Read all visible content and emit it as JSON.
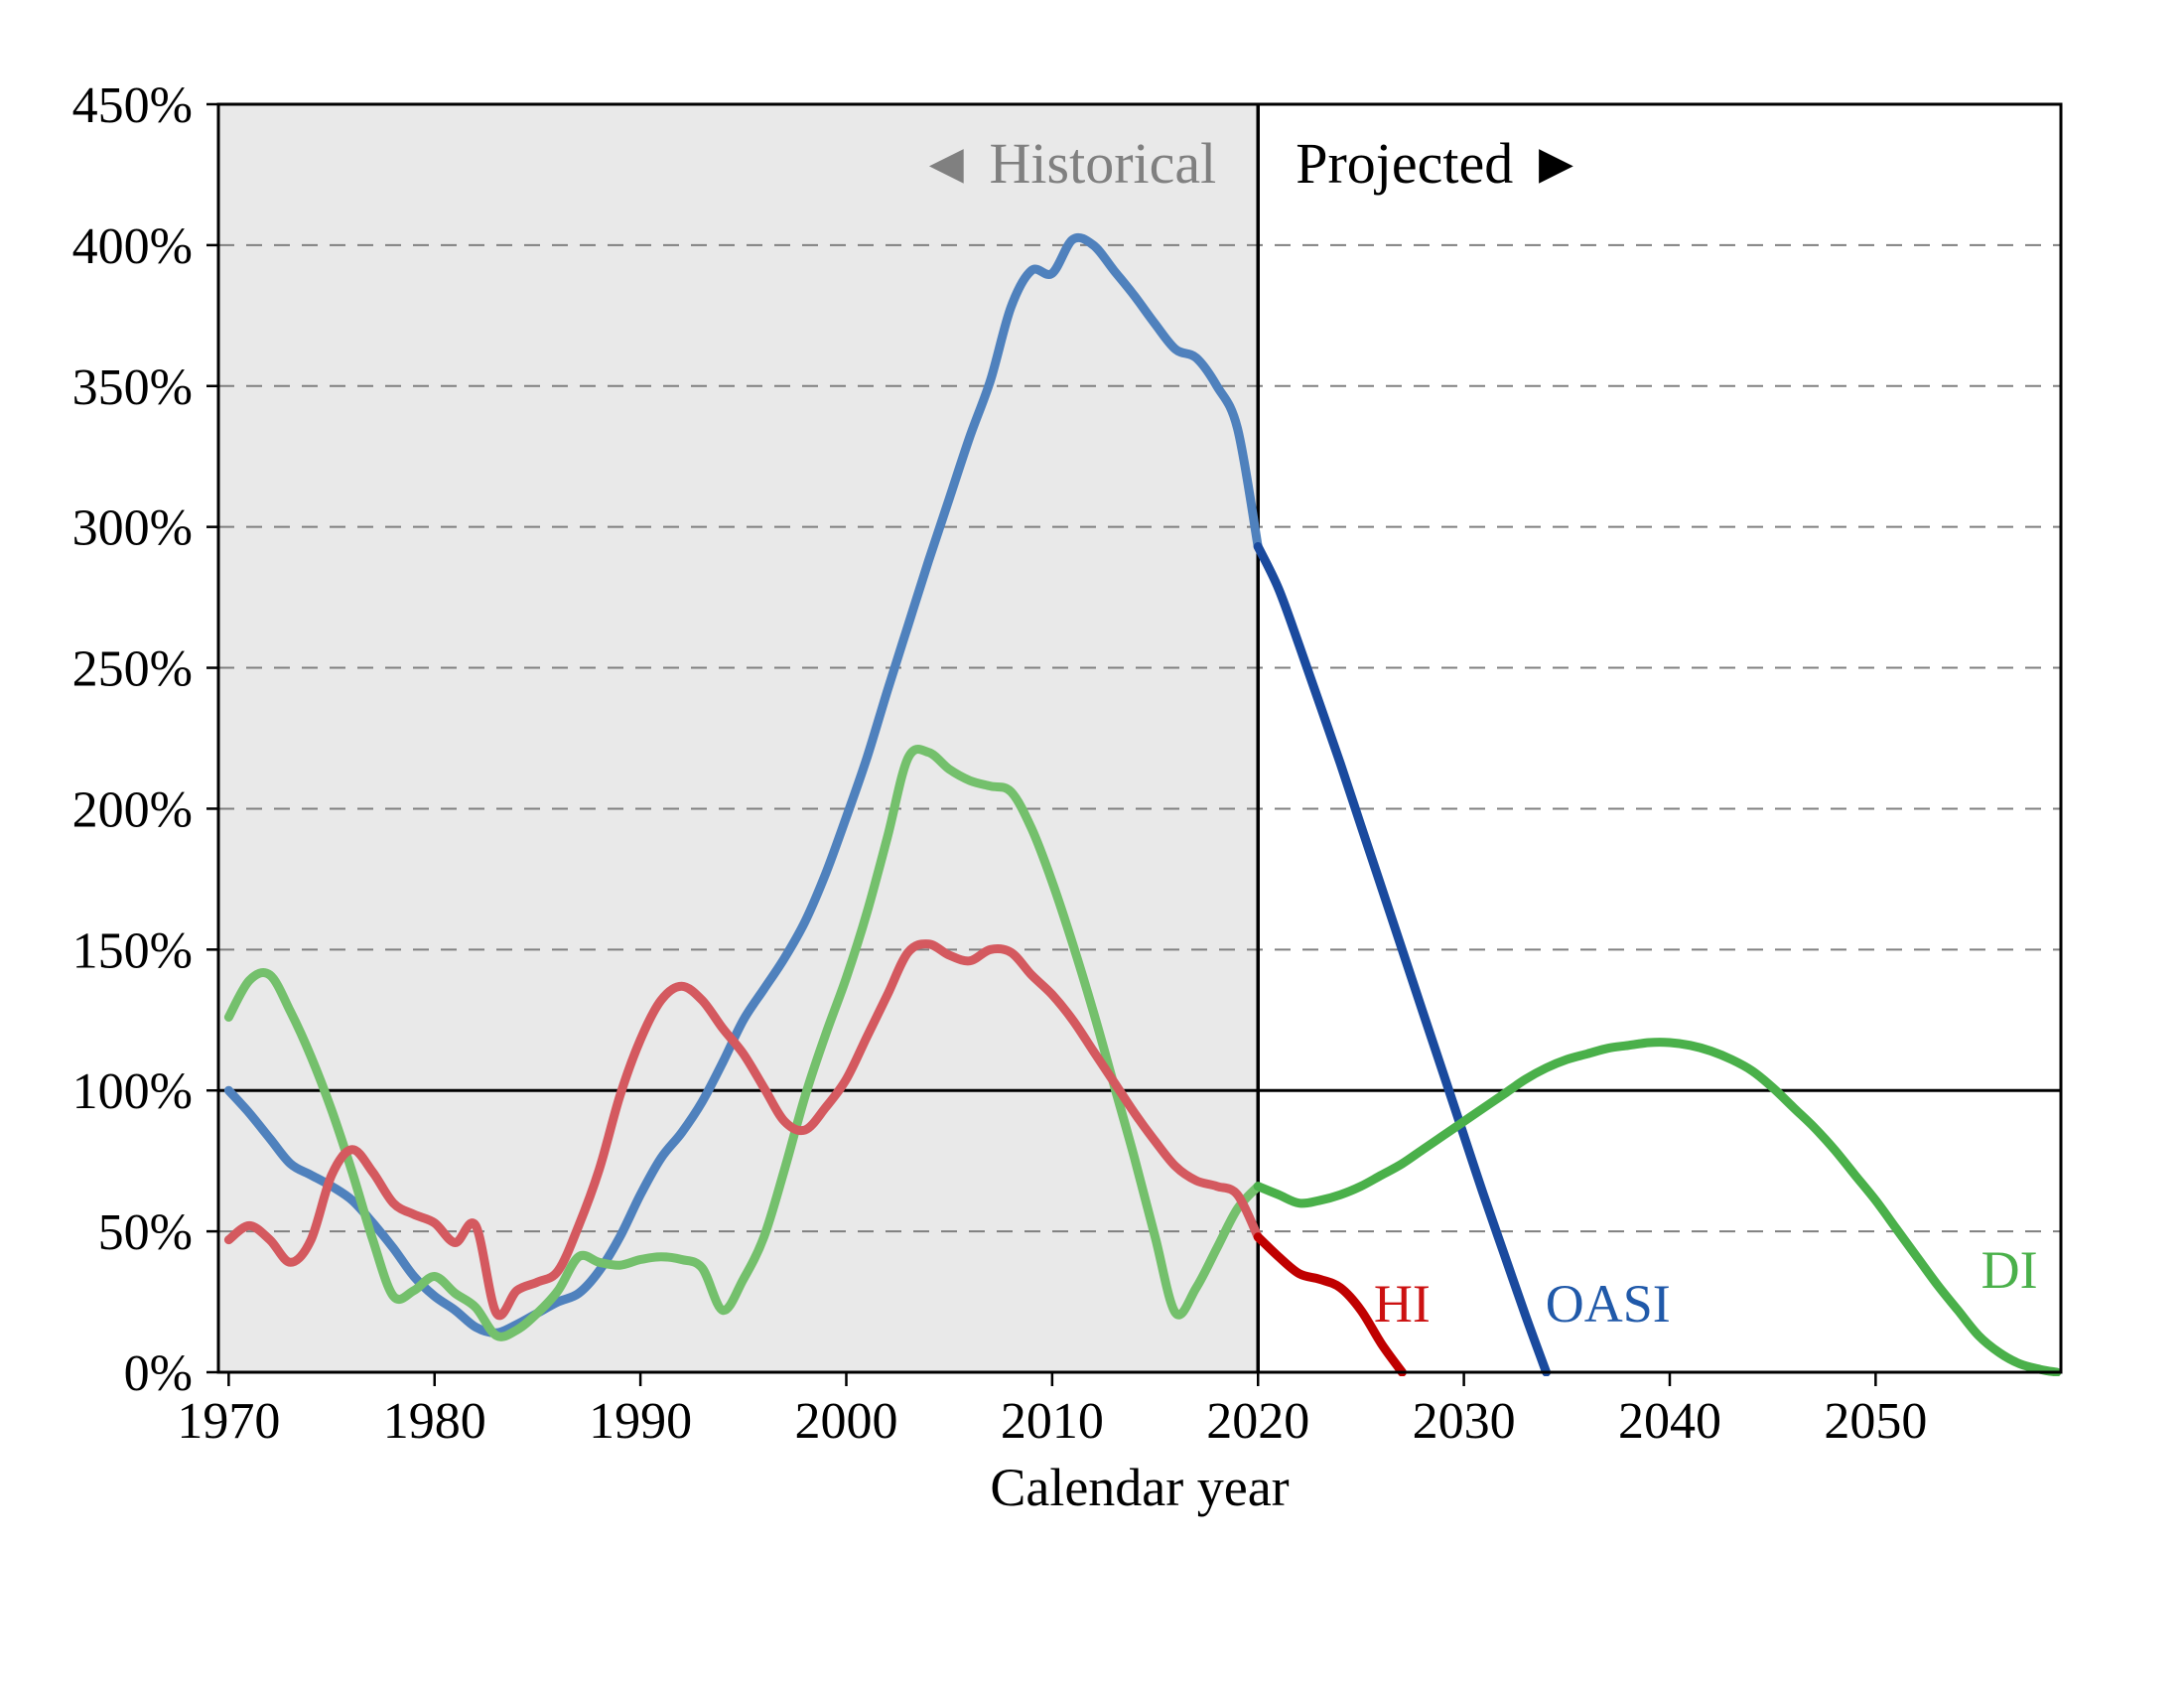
{
  "colors": {
    "historical_region": "#e9e9e9",
    "gridline": "#808080",
    "frame": "#000000",
    "reference_line": "#000000",
    "divider": "#000000",
    "historical_text": "#808080",
    "projected_text": "#000000",
    "tick_text": "#000000"
  },
  "chart_data": {
    "type": "line",
    "title": "",
    "xlabel": "Calendar year",
    "ylabel": "",
    "xlim": [
      1969.5,
      2059
    ],
    "ylim": [
      0,
      450
    ],
    "grid": "dashed horizontal gridlines every 50%, solid line at 100%",
    "legend_position": "inline labels at line ends",
    "reference_line": 100,
    "divider_year": 2020,
    "region_labels": {
      "historical": "◄ Historical",
      "projected": "Projected ►"
    },
    "x_ticks": [
      {
        "value": 1970,
        "label": "1970"
      },
      {
        "value": 1980,
        "label": "1980"
      },
      {
        "value": 1990,
        "label": "1990"
      },
      {
        "value": 2000,
        "label": "2000"
      },
      {
        "value": 2010,
        "label": "2010"
      },
      {
        "value": 2020,
        "label": "2020"
      },
      {
        "value": 2030,
        "label": "2030"
      },
      {
        "value": 2040,
        "label": "2040"
      },
      {
        "value": 2050,
        "label": "2050"
      }
    ],
    "y_ticks": [
      {
        "value": 0,
        "label": "0%"
      },
      {
        "value": 50,
        "label": "50%"
      },
      {
        "value": 100,
        "label": "100%"
      },
      {
        "value": 150,
        "label": "150%"
      },
      {
        "value": 200,
        "label": "200%"
      },
      {
        "value": 250,
        "label": "250%"
      },
      {
        "value": 300,
        "label": "300%"
      },
      {
        "value": 350,
        "label": "350%"
      },
      {
        "value": 400,
        "label": "400%"
      },
      {
        "value": 450,
        "label": "450%"
      }
    ],
    "series": [
      {
        "name": "OASI",
        "color_historical": "#4f81bd",
        "color_projected": "#1a4a9e",
        "label_color": "#2059a9",
        "label_pos": {
          "year": 2037,
          "pct": 18
        },
        "points_historical": [
          [
            1970,
            100
          ],
          [
            1971,
            92
          ],
          [
            1972,
            83
          ],
          [
            1973,
            74
          ],
          [
            1974,
            70
          ],
          [
            1975,
            66
          ],
          [
            1976,
            61
          ],
          [
            1977,
            53
          ],
          [
            1978,
            44
          ],
          [
            1979,
            34
          ],
          [
            1980,
            27
          ],
          [
            1981,
            22
          ],
          [
            1982,
            16
          ],
          [
            1983,
            14
          ],
          [
            1984,
            17
          ],
          [
            1985,
            21
          ],
          [
            1986,
            25
          ],
          [
            1987,
            28
          ],
          [
            1988,
            36
          ],
          [
            1989,
            48
          ],
          [
            1990,
            63
          ],
          [
            1991,
            76
          ],
          [
            1992,
            85
          ],
          [
            1993,
            96
          ],
          [
            1994,
            110
          ],
          [
            1995,
            125
          ],
          [
            1996,
            136
          ],
          [
            1997,
            147
          ],
          [
            1998,
            160
          ],
          [
            1999,
            177
          ],
          [
            2000,
            197
          ],
          [
            2001,
            218
          ],
          [
            2002,
            242
          ],
          [
            2003,
            265
          ],
          [
            2004,
            288
          ],
          [
            2005,
            310
          ],
          [
            2006,
            332
          ],
          [
            2007,
            352
          ],
          [
            2008,
            378
          ],
          [
            2009,
            391
          ],
          [
            2010,
            390
          ],
          [
            2011,
            402
          ],
          [
            2012,
            400
          ],
          [
            2013,
            391
          ],
          [
            2014,
            382
          ],
          [
            2015,
            372
          ],
          [
            2016,
            363
          ],
          [
            2017,
            360
          ],
          [
            2018,
            350
          ],
          [
            2019,
            335
          ],
          [
            2020,
            293
          ]
        ],
        "points_projected": [
          [
            2020,
            293
          ],
          [
            2021,
            278
          ],
          [
            2022,
            258
          ],
          [
            2023,
            237
          ],
          [
            2024,
            216
          ],
          [
            2025,
            194
          ],
          [
            2026,
            172
          ],
          [
            2027,
            150
          ],
          [
            2028,
            128
          ],
          [
            2029,
            106
          ],
          [
            2030,
            84
          ],
          [
            2031,
            62
          ],
          [
            2032,
            41
          ],
          [
            2033,
            20
          ],
          [
            2034,
            0
          ]
        ]
      },
      {
        "name": "DI",
        "color_historical": "#74c06c",
        "color_projected": "#4ab04a",
        "label_color": "#4ab04a",
        "label_pos": {
          "year": 2056.5,
          "pct": 30
        },
        "points_historical": [
          [
            1970,
            126
          ],
          [
            1971,
            139
          ],
          [
            1972,
            141
          ],
          [
            1973,
            128
          ],
          [
            1974,
            112
          ],
          [
            1975,
            93
          ],
          [
            1976,
            71
          ],
          [
            1977,
            47
          ],
          [
            1978,
            27
          ],
          [
            1979,
            29
          ],
          [
            1980,
            34
          ],
          [
            1981,
            28
          ],
          [
            1982,
            23
          ],
          [
            1983,
            13
          ],
          [
            1984,
            15
          ],
          [
            1985,
            21
          ],
          [
            1986,
            29
          ],
          [
            1987,
            41
          ],
          [
            1988,
            39
          ],
          [
            1989,
            38
          ],
          [
            1990,
            40
          ],
          [
            1991,
            41
          ],
          [
            1992,
            40
          ],
          [
            1993,
            37
          ],
          [
            1994,
            22
          ],
          [
            1995,
            33
          ],
          [
            1996,
            48
          ],
          [
            1997,
            72
          ],
          [
            1998,
            98
          ],
          [
            1999,
            120
          ],
          [
            2000,
            140
          ],
          [
            2001,
            163
          ],
          [
            2002,
            190
          ],
          [
            2003,
            218
          ],
          [
            2004,
            220
          ],
          [
            2005,
            214
          ],
          [
            2006,
            210
          ],
          [
            2007,
            208
          ],
          [
            2008,
            206
          ],
          [
            2009,
            193
          ],
          [
            2010,
            174
          ],
          [
            2011,
            152
          ],
          [
            2012,
            128
          ],
          [
            2013,
            102
          ],
          [
            2014,
            76
          ],
          [
            2015,
            48
          ],
          [
            2016,
            21
          ],
          [
            2017,
            30
          ],
          [
            2018,
            44
          ],
          [
            2019,
            58
          ],
          [
            2020,
            66
          ]
        ],
        "points_projected": [
          [
            2020,
            66
          ],
          [
            2021,
            63
          ],
          [
            2022,
            60
          ],
          [
            2023,
            61
          ],
          [
            2024,
            63
          ],
          [
            2025,
            66
          ],
          [
            2026,
            70
          ],
          [
            2027,
            74
          ],
          [
            2028,
            79
          ],
          [
            2029,
            84
          ],
          [
            2030,
            89
          ],
          [
            2031,
            94
          ],
          [
            2032,
            99
          ],
          [
            2033,
            104
          ],
          [
            2034,
            108
          ],
          [
            2035,
            111
          ],
          [
            2036,
            113
          ],
          [
            2037,
            115
          ],
          [
            2038,
            116
          ],
          [
            2039,
            117
          ],
          [
            2040,
            117
          ],
          [
            2041,
            116
          ],
          [
            2042,
            114
          ],
          [
            2043,
            111
          ],
          [
            2044,
            107
          ],
          [
            2045,
            101
          ],
          [
            2046,
            94
          ],
          [
            2047,
            87
          ],
          [
            2048,
            79
          ],
          [
            2049,
            70
          ],
          [
            2050,
            61
          ],
          [
            2051,
            51
          ],
          [
            2052,
            41
          ],
          [
            2053,
            31
          ],
          [
            2054,
            22
          ],
          [
            2055,
            13
          ],
          [
            2056,
            7
          ],
          [
            2057,
            3
          ],
          [
            2058,
            1
          ],
          [
            2058.8,
            0
          ]
        ]
      },
      {
        "name": "HI",
        "color_historical": "#d4595f",
        "color_projected": "#c00000",
        "label_color": "#cc1111",
        "label_pos": {
          "year": 2027,
          "pct": 18
        },
        "points_historical": [
          [
            1970,
            47
          ],
          [
            1971,
            52
          ],
          [
            1972,
            47
          ],
          [
            1973,
            39
          ],
          [
            1974,
            47
          ],
          [
            1975,
            70
          ],
          [
            1976,
            79
          ],
          [
            1977,
            71
          ],
          [
            1978,
            60
          ],
          [
            1979,
            56
          ],
          [
            1980,
            53
          ],
          [
            1981,
            46
          ],
          [
            1982,
            52
          ],
          [
            1983,
            21
          ],
          [
            1984,
            29
          ],
          [
            1985,
            32
          ],
          [
            1986,
            36
          ],
          [
            1987,
            52
          ],
          [
            1988,
            72
          ],
          [
            1989,
            98
          ],
          [
            1990,
            118
          ],
          [
            1991,
            132
          ],
          [
            1992,
            137
          ],
          [
            1993,
            132
          ],
          [
            1994,
            122
          ],
          [
            1995,
            113
          ],
          [
            1996,
            101
          ],
          [
            1997,
            89
          ],
          [
            1998,
            86
          ],
          [
            1999,
            94
          ],
          [
            2000,
            104
          ],
          [
            2001,
            119
          ],
          [
            2002,
            134
          ],
          [
            2003,
            149
          ],
          [
            2004,
            152
          ],
          [
            2005,
            148
          ],
          [
            2006,
            146
          ],
          [
            2007,
            150
          ],
          [
            2008,
            149
          ],
          [
            2009,
            141
          ],
          [
            2010,
            134
          ],
          [
            2011,
            125
          ],
          [
            2012,
            114
          ],
          [
            2013,
            103
          ],
          [
            2014,
            92
          ],
          [
            2015,
            82
          ],
          [
            2016,
            73
          ],
          [
            2017,
            68
          ],
          [
            2018,
            66
          ],
          [
            2019,
            63
          ],
          [
            2020,
            48
          ]
        ],
        "points_projected": [
          [
            2020,
            48
          ],
          [
            2021,
            41
          ],
          [
            2022,
            35
          ],
          [
            2023,
            33
          ],
          [
            2024,
            30
          ],
          [
            2025,
            22
          ],
          [
            2026,
            10
          ],
          [
            2027,
            0
          ]
        ]
      }
    ]
  }
}
